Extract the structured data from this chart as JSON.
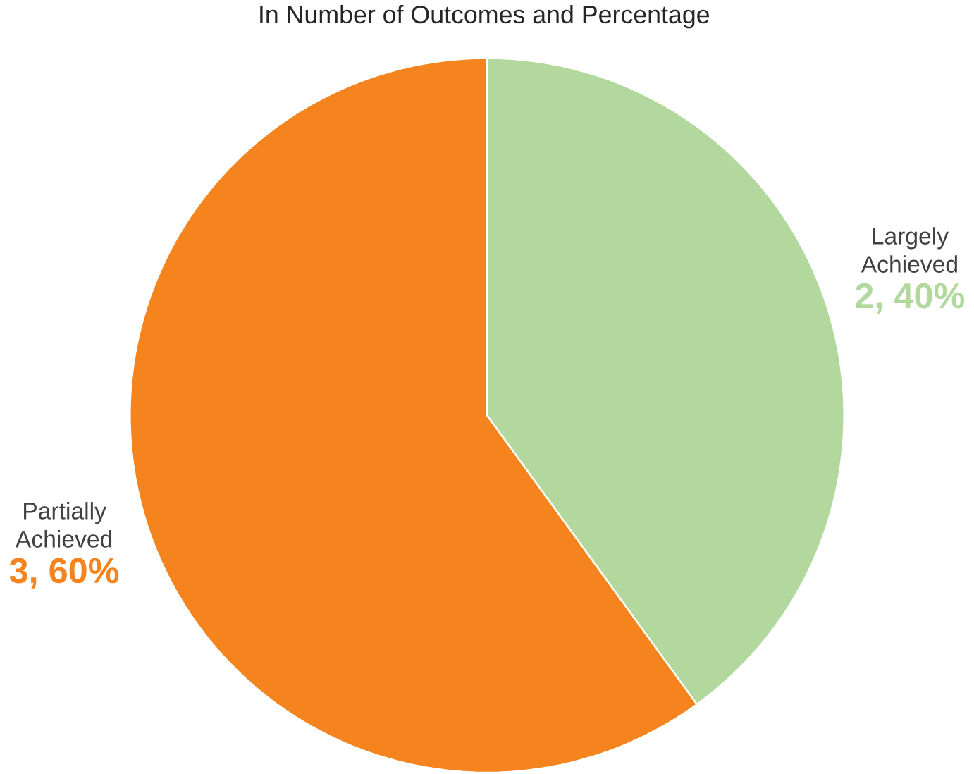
{
  "chart_data": {
    "type": "pie",
    "title": "In Number of Outcomes and Percentage",
    "categories": [
      "Largely Achieved",
      "Partially Achieved"
    ],
    "values": [
      2,
      3
    ],
    "colors": [
      "#b2d89e",
      "#f5841f"
    ],
    "value_labels": [
      "2, 40%",
      "3, 60%"
    ]
  }
}
